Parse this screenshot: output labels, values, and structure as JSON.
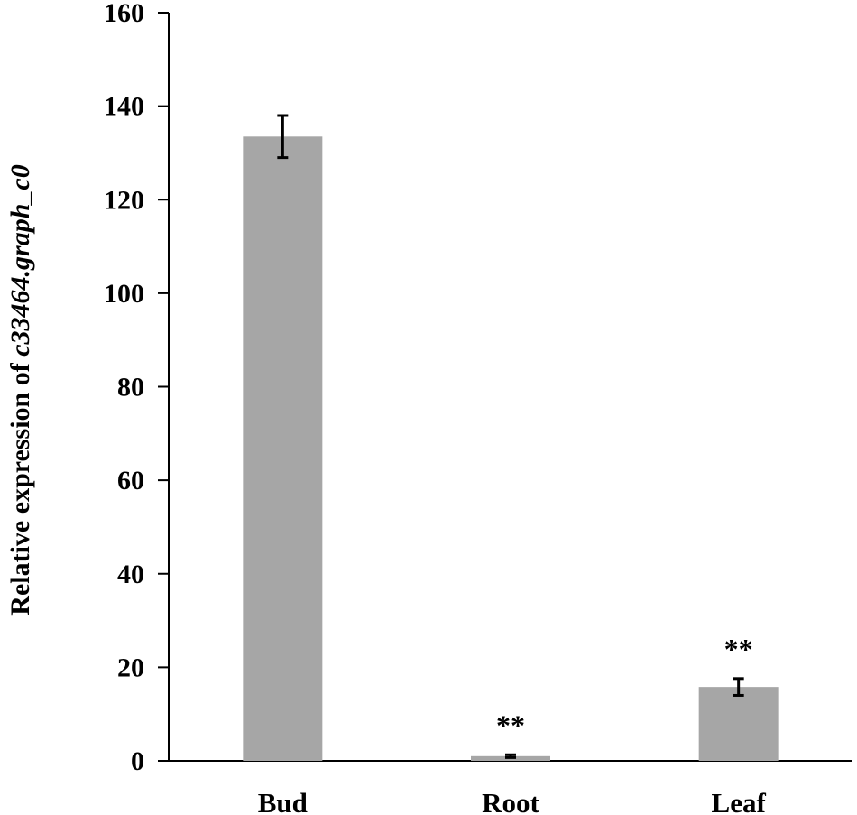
{
  "chart_data": {
    "type": "bar",
    "categories": [
      "Bud",
      "Root",
      "Leaf"
    ],
    "values": [
      133.5,
      1,
      15.8
    ],
    "errors": [
      4.5,
      0.3,
      1.8
    ],
    "significance": [
      "",
      "**",
      "**"
    ],
    "ylabel_prefix": "Relative expression of ",
    "ylabel_gene": "c33464.graph_c0",
    "ylim": [
      0,
      160
    ],
    "yticks": [
      0,
      20,
      40,
      60,
      80,
      100,
      120,
      140,
      160
    ],
    "bar_color": "#a6a6a6",
    "grid": false,
    "legend": false
  }
}
